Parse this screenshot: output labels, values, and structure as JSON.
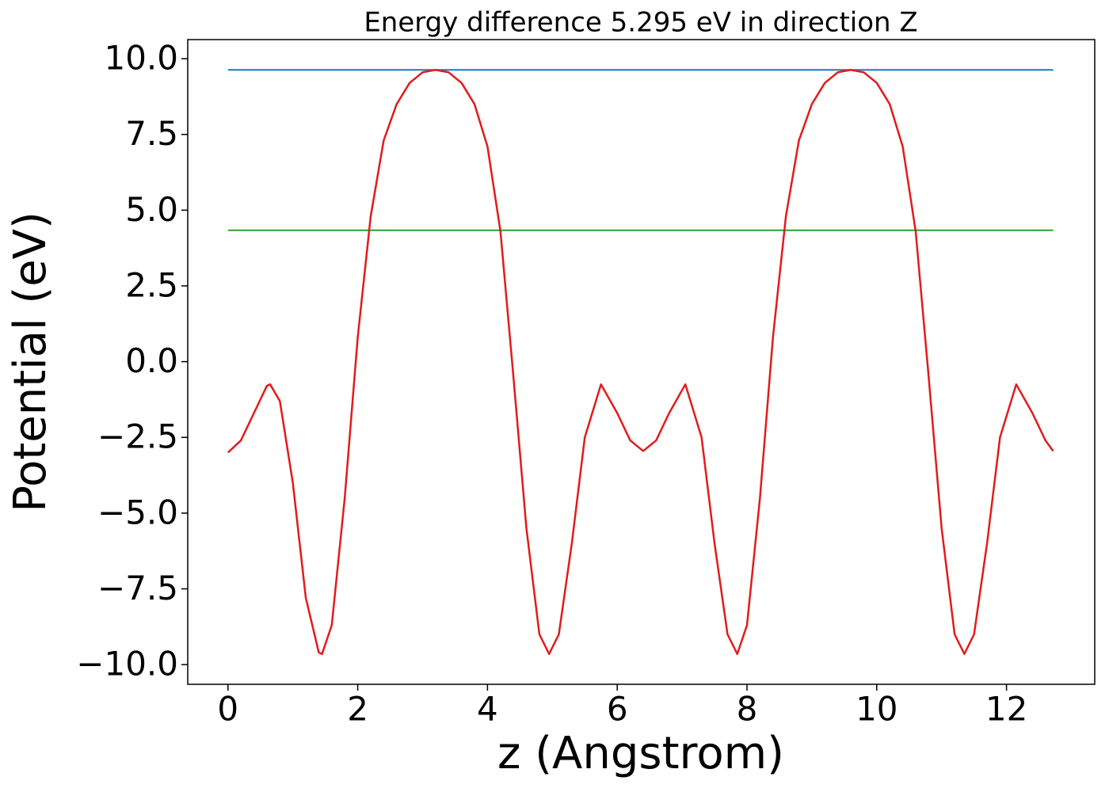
{
  "chart_data": {
    "type": "line",
    "title": "Energy difference 5.295 eV in direction Z",
    "x_label": "z (Angstrom)",
    "y_label": "Potential (eV)",
    "xlim": [
      -0.62,
      13.36
    ],
    "ylim": [
      -10.65,
      10.63
    ],
    "xticks": [
      0,
      2,
      4,
      6,
      8,
      10,
      12
    ],
    "yticks": [
      {
        "value": -10,
        "label": "−10.0"
      },
      {
        "value": -7.5,
        "label": "−7.5"
      },
      {
        "value": -5,
        "label": "−5.0"
      },
      {
        "value": -2.5,
        "label": "−2.5"
      },
      {
        "value": 0,
        "label": "0.0"
      },
      2.5,
      {
        "value": 5,
        "label": "5.0"
      },
      7.5,
      {
        "value": 10,
        "label": "10.0"
      }
    ],
    "grid": false,
    "series": [
      {
        "color": "#1f77b4",
        "x": [
          0,
          12.72
        ],
        "values": [
          9.63,
          9.63
        ]
      },
      {
        "color": "#2ca02c",
        "x": [
          0,
          12.72
        ],
        "values": [
          4.335,
          4.335
        ]
      },
      {
        "color": "#e31a1c",
        "x": [
          0,
          0.2,
          0.4,
          0.6,
          0.65,
          0.8,
          1.0,
          1.2,
          1.4,
          1.45,
          1.6,
          1.8,
          2.0,
          2.2,
          2.4,
          2.6,
          2.8,
          3.0,
          3.2,
          3.4,
          3.6,
          3.8,
          4.0,
          4.2,
          4.4,
          4.6,
          4.8,
          4.95,
          5.1,
          5.3,
          5.5,
          5.75,
          6.0,
          6.2,
          6.4,
          6.6,
          6.8,
          7.05,
          7.3,
          7.5,
          7.7,
          7.85,
          8.0,
          8.2,
          8.4,
          8.6,
          8.8,
          9.0,
          9.2,
          9.4,
          9.6,
          9.8,
          10.0,
          10.2,
          10.4,
          10.6,
          10.8,
          11.0,
          11.2,
          11.35,
          11.5,
          11.7,
          11.9,
          12.15,
          12.4,
          12.6,
          12.72
        ],
        "values": [
          -3.0,
          -2.6,
          -1.7,
          -0.8,
          -0.75,
          -1.3,
          -4.0,
          -7.8,
          -9.6,
          -9.65,
          -8.7,
          -4.5,
          0.8,
          4.8,
          7.3,
          8.5,
          9.2,
          9.55,
          9.63,
          9.55,
          9.2,
          8.5,
          7.1,
          4.3,
          -0.5,
          -5.5,
          -9.0,
          -9.65,
          -9.0,
          -6.0,
          -2.5,
          -0.75,
          -1.7,
          -2.6,
          -2.95,
          -2.6,
          -1.7,
          -0.75,
          -2.5,
          -6.0,
          -9.0,
          -9.65,
          -8.7,
          -4.5,
          0.8,
          4.8,
          7.3,
          8.5,
          9.2,
          9.55,
          9.63,
          9.55,
          9.2,
          8.5,
          7.1,
          4.3,
          -0.5,
          -5.5,
          -9.0,
          -9.65,
          -9.0,
          -6.0,
          -2.5,
          -0.75,
          -1.7,
          -2.6,
          -2.95
        ]
      }
    ]
  }
}
